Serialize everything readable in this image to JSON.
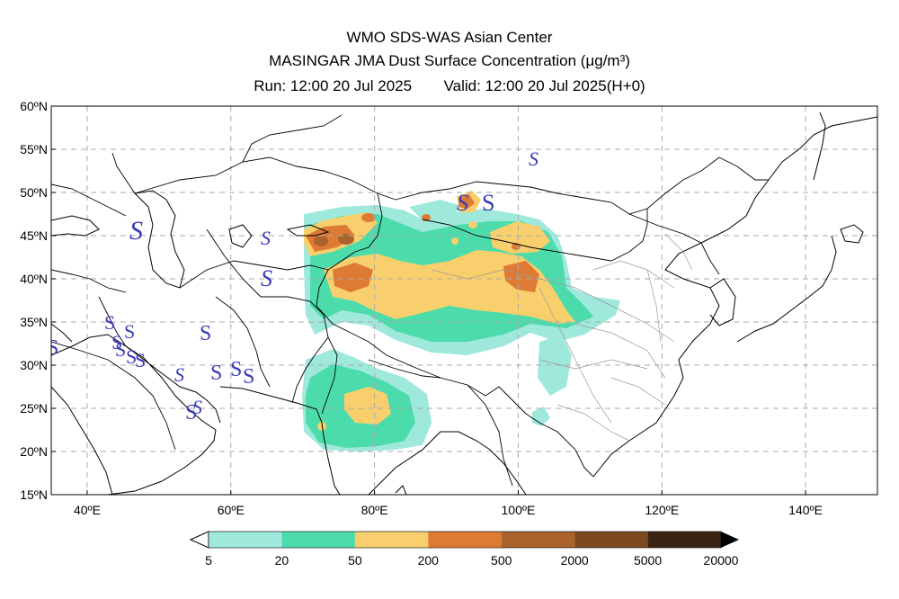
{
  "header": {
    "center": "WMO SDS-WAS Asian Center",
    "product": "MASINGAR JMA Dust Surface Concentration (μg/m³)",
    "run": "Run: 12:00 20 Jul 2025",
    "valid": "Valid: 12:00 20 Jul 2025(H+0)"
  },
  "map": {
    "lat_labels": [
      "60ºN",
      "55ºN",
      "50ºN",
      "45ºN",
      "40ºN",
      "35ºN",
      "30ºN",
      "25ºN",
      "20ºN",
      "15ºN"
    ],
    "lon_labels": [
      "40ºE",
      "60ºE",
      "80ºE",
      "100ºE",
      "120ºE",
      "140ºE"
    ],
    "lon_range": [
      35,
      150
    ],
    "lat_range": [
      15,
      60
    ],
    "grid": true
  },
  "colorbar": {
    "levels": [
      "5",
      "20",
      "50",
      "200",
      "500",
      "2000",
      "5000",
      "20000"
    ],
    "colors": [
      "#9ee8dc",
      "#4cdcab",
      "#f8cf6c",
      "#dd7a34",
      "#a9632b",
      "#7d4a1f",
      "#3c2414"
    ],
    "under_color": "#ffffff"
  },
  "dust_symbol": "S"
}
